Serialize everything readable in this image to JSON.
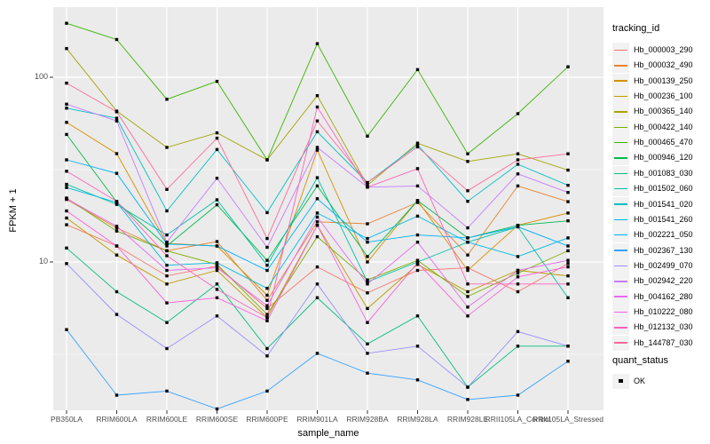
{
  "figure": {
    "background": "#FFFFFF",
    "panel_background": "#EBEBEB",
    "grid_color": "#FFFFFF",
    "tick_color": "#333333",
    "point_color": "#000000"
  },
  "axes": {
    "x": {
      "title": "sample_name"
    },
    "y": {
      "title": "FPKM + 1",
      "ticks": [
        {
          "label": "100",
          "value": 100
        },
        {
          "label": "10",
          "value": 10
        }
      ]
    }
  },
  "legend": {
    "tracking_title": "tracking_id",
    "quant_title": "quant_status",
    "quant_item_label": "OK"
  },
  "chart_data": {
    "type": "line",
    "title": "",
    "xlabel": "sample_name",
    "ylabel": "FPKM + 1",
    "y_scale": "log10",
    "ylim": [
      1.5,
      240
    ],
    "y_major_ticks": [
      100,
      10
    ],
    "y_minor_gridlines": [
      31.62,
      3.162
    ],
    "grid": true,
    "legend_position": "right",
    "point_marker": "black-square",
    "categories": [
      "PB350LA",
      "RRIM600LA",
      "RRIM600LE",
      "RRIM600SE",
      "RRIM600PE",
      "RRIM901LA",
      "RRIM928BA",
      "RRIM928LA",
      "RRIM928LE",
      "RRII105LA_Control",
      "RRII105LA_Stressed"
    ],
    "series": [
      {
        "name": "Hb_000003_290",
        "color": "#F8766D",
        "values": [
          15.9,
          12.2,
          8.4,
          9.5,
          5.6,
          9.4,
          6.8,
          9.0,
          9.3,
          6.9,
          9.8
        ]
      },
      {
        "name": "Hb_000032_490",
        "color": "#EA8331",
        "values": [
          21.8,
          15.3,
          11.5,
          12.9,
          6.2,
          16.5,
          16.1,
          21.0,
          10.9,
          25.8,
          21.2
        ]
      },
      {
        "name": "Hb_000139_250",
        "color": "#D89000",
        "values": [
          57.0,
          38.6,
          12.6,
          12.2,
          6.6,
          40.3,
          10.0,
          21.5,
          9.0,
          15.8,
          18.4
        ]
      },
      {
        "name": "Hb_000236_100",
        "color": "#C09B00",
        "values": [
          17.3,
          10.9,
          7.6,
          9.0,
          5.0,
          15.8,
          5.6,
          9.7,
          6.9,
          9.0,
          8.4
        ]
      },
      {
        "name": "Hb_000365_140",
        "color": "#A3A500",
        "values": [
          143.0,
          65.6,
          41.7,
          50.0,
          35.7,
          79.5,
          26.0,
          44.0,
          35.0,
          38.5,
          31.4
        ]
      },
      {
        "name": "Hb_000422_140",
        "color": "#7CAE00",
        "values": [
          22.2,
          14.7,
          11.5,
          9.7,
          5.2,
          13.7,
          8.0,
          10.2,
          6.5,
          8.7,
          11.5
        ]
      },
      {
        "name": "Hb_000465_470",
        "color": "#39B600",
        "values": [
          196.0,
          160.0,
          76.0,
          95.0,
          35.7,
          152.0,
          48.0,
          110.0,
          38.5,
          63.5,
          114.0
        ]
      },
      {
        "name": "Hb_000946_120",
        "color": "#00BB4E",
        "values": [
          49.0,
          21.1,
          12.2,
          20.4,
          10.2,
          25.8,
          10.7,
          21.5,
          13.5,
          15.8,
          16.7
        ]
      },
      {
        "name": "Hb_001083_030",
        "color": "#00BF7D",
        "values": [
          11.9,
          6.9,
          4.7,
          7.6,
          3.4,
          6.4,
          3.6,
          5.1,
          2.1,
          3.5,
          3.5
        ]
      },
      {
        "name": "Hb_001502_060",
        "color": "#00C1A3",
        "values": [
          26.3,
          20.5,
          14.0,
          21.7,
          9.6,
          28.6,
          7.8,
          10.0,
          12.8,
          15.5,
          6.4
        ]
      },
      {
        "name": "Hb_001541_020",
        "color": "#00BFC4",
        "values": [
          68.0,
          60.0,
          18.9,
          40.6,
          18.5,
          50.7,
          26.9,
          43.0,
          21.3,
          33.8,
          26.0
        ]
      },
      {
        "name": "Hb_001541_260",
        "color": "#00BAE0",
        "values": [
          25.3,
          21.0,
          9.6,
          9.9,
          7.2,
          18.4,
          13.4,
          17.7,
          12.8,
          10.7,
          13.5
        ]
      },
      {
        "name": "Hb_002221_050",
        "color": "#00B0F6",
        "values": [
          35.7,
          30.2,
          12.5,
          12.2,
          9.0,
          22.0,
          12.8,
          14.0,
          13.5,
          15.5,
          12.2
        ]
      },
      {
        "name": "Hb_002367_130",
        "color": "#35A2FF",
        "values": [
          4.3,
          1.9,
          2.0,
          1.6,
          2.0,
          3.2,
          2.5,
          2.3,
          1.8,
          1.9,
          2.9
        ]
      },
      {
        "name": "Hb_002499_070",
        "color": "#9590FF",
        "values": [
          9.8,
          5.2,
          3.4,
          5.1,
          3.1,
          7.6,
          3.2,
          3.5,
          2.1,
          4.2,
          3.5
        ]
      },
      {
        "name": "Hb_002942_220",
        "color": "#C77CFF",
        "values": [
          71.5,
          58.0,
          12.8,
          28.4,
          12.0,
          41.7,
          25.4,
          25.8,
          15.3,
          30.0,
          23.8
        ]
      },
      {
        "name": "Hb_004162_280",
        "color": "#E76BF3",
        "values": [
          22.0,
          15.6,
          9.0,
          9.3,
          5.8,
          17.5,
          7.6,
          12.8,
          5.7,
          9.0,
          10.2
        ]
      },
      {
        "name": "Hb_010222_080",
        "color": "#FA62DB",
        "values": [
          18.9,
          12.2,
          6.0,
          6.4,
          4.8,
          15.8,
          4.7,
          9.9,
          5.1,
          8.3,
          9.4
        ]
      },
      {
        "name": "Hb_012132_030",
        "color": "#FF62BC",
        "values": [
          31.0,
          21.3,
          10.8,
          7.1,
          5.0,
          69.0,
          25.4,
          32.0,
          7.6,
          7.6,
          7.6
        ]
      },
      {
        "name": "Hb_144787_030",
        "color": "#FF6A98",
        "values": [
          93.0,
          65.0,
          24.7,
          46.8,
          13.4,
          58.0,
          26.9,
          42.0,
          24.3,
          35.7,
          38.5
        ]
      }
    ]
  }
}
